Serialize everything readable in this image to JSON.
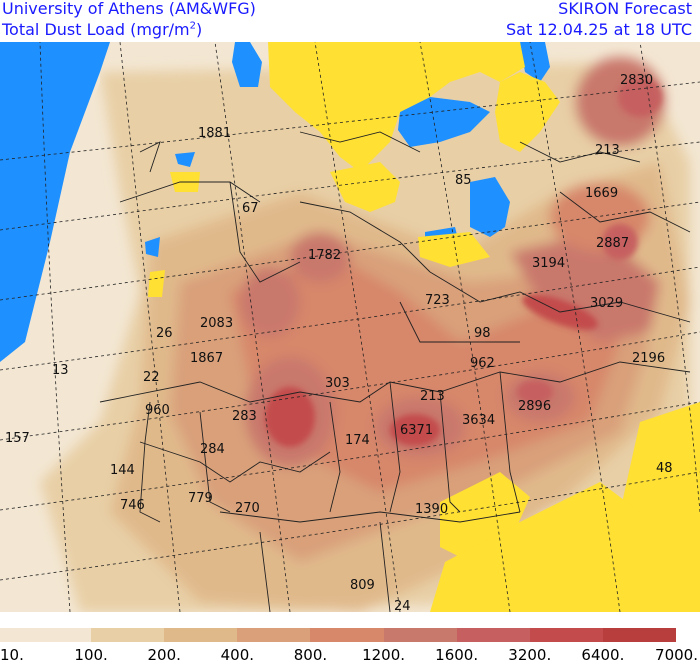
{
  "header": {
    "institution": "University of Athens (AM&WFG)",
    "product": "SKIRON Forecast",
    "variable_prefix": "Total Dust Load (mgr/m",
    "variable_exp": "2",
    "variable_suffix": ")",
    "valid_time": "Sat 12.04.25 at 18 UTC"
  },
  "colors": {
    "sea": "#1e90ff",
    "no_data": "#ffe033",
    "background_low": "#f3e7d3",
    "grid": "#222222",
    "border": "#222222"
  },
  "legend": {
    "bins": [
      {
        "label": "10.",
        "color": "#f3e7d3"
      },
      {
        "label": "100.",
        "color": "#e8cfa6"
      },
      {
        "label": "200.",
        "color": "#e0b98b"
      },
      {
        "label": "400.",
        "color": "#d9a07a"
      },
      {
        "label": "800.",
        "color": "#d7876a"
      },
      {
        "label": "1200.",
        "color": "#c9786c"
      },
      {
        "label": "1600.",
        "color": "#c66060"
      },
      {
        "label": "3200.",
        "color": "#c34b4b"
      },
      {
        "label": "6400.",
        "color": "#b83d3d"
      },
      {
        "label": "7000.",
        "color": "#b83d3d"
      }
    ]
  },
  "map_values": [
    {
      "text": "2830"
    },
    {
      "text": "1881"
    },
    {
      "text": "213"
    },
    {
      "text": "85"
    },
    {
      "text": "1669"
    },
    {
      "text": "67"
    },
    {
      "text": "2887"
    },
    {
      "text": "1782"
    },
    {
      "text": "3194"
    },
    {
      "text": "723"
    },
    {
      "text": "3029"
    },
    {
      "text": "26"
    },
    {
      "text": "2083"
    },
    {
      "text": "98"
    },
    {
      "text": "1867"
    },
    {
      "text": "962"
    },
    {
      "text": "2196"
    },
    {
      "text": "13"
    },
    {
      "text": "22"
    },
    {
      "text": "303"
    },
    {
      "text": "960"
    },
    {
      "text": "213"
    },
    {
      "text": "2896"
    },
    {
      "text": "283"
    },
    {
      "text": "6371"
    },
    {
      "text": "3634"
    },
    {
      "text": "157"
    },
    {
      "text": "174"
    },
    {
      "text": "284"
    },
    {
      "text": "144"
    },
    {
      "text": "48"
    },
    {
      "text": "746"
    },
    {
      "text": "779"
    },
    {
      "text": "270"
    },
    {
      "text": "1390"
    },
    {
      "text": "809"
    },
    {
      "text": "24"
    }
  ]
}
